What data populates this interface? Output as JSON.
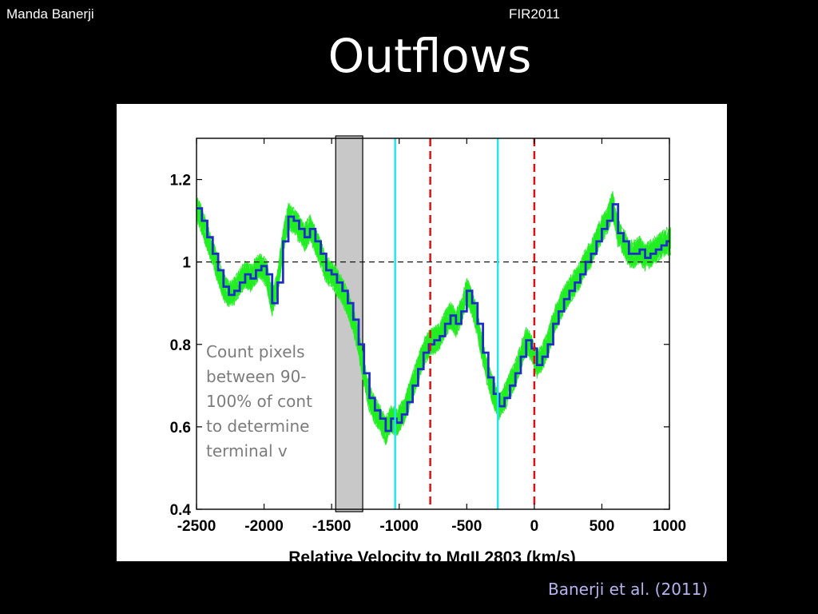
{
  "header": {
    "author": "Manda Banerji",
    "event": "FIR2011"
  },
  "slide": {
    "title": "Outflows",
    "citation": "Banerji et al. (2011)"
  },
  "chart_data": {
    "type": "line",
    "xlabel": "Relative Velocity to MgII 2803 (km/s)",
    "ylabel": "",
    "xlim": [
      -2500,
      1000
    ],
    "ylim": [
      0.4,
      1.3
    ],
    "xticks": [
      -2500,
      -2000,
      -1500,
      -1000,
      -500,
      0,
      500,
      1000
    ],
    "xtick_labels": [
      "-2500",
      "-2000",
      "-1500",
      "-1000",
      "-500",
      "0",
      "500",
      "1000"
    ],
    "yticks": [
      0.4,
      0.6,
      0.8,
      1.0,
      1.2
    ],
    "ytick_labels": [
      "0.4",
      "0.6",
      "0.8",
      "1",
      "1.2"
    ],
    "grid": false,
    "continuum_level": 1.0,
    "shaded_region": [
      -1470,
      -1270
    ],
    "cyan_lines": [
      -1030,
      -270
    ],
    "red_dashed_lines": [
      -770,
      0
    ],
    "annotation": {
      "lines": [
        "Count pixels",
        "between 90-",
        "100% of cont",
        "to determine",
        "terminal v"
      ]
    },
    "series": [
      {
        "style": "step",
        "color": "#1e2cc8",
        "x": [
          -2500,
          -2460,
          -2420,
          -2380,
          -2340,
          -2300,
          -2260,
          -2220,
          -2180,
          -2140,
          -2100,
          -2060,
          -2020,
          -1980,
          -1940,
          -1900,
          -1860,
          -1820,
          -1780,
          -1740,
          -1700,
          -1660,
          -1620,
          -1580,
          -1540,
          -1500,
          -1460,
          -1420,
          -1380,
          -1340,
          -1300,
          -1260,
          -1220,
          -1180,
          -1140,
          -1100,
          -1060,
          -1020,
          -980,
          -940,
          -900,
          -860,
          -820,
          -780,
          -740,
          -700,
          -660,
          -620,
          -580,
          -540,
          -500,
          -460,
          -420,
          -380,
          -340,
          -300,
          -260,
          -220,
          -180,
          -140,
          -100,
          -60,
          -20,
          20,
          60,
          100,
          140,
          180,
          220,
          260,
          300,
          340,
          380,
          420,
          460,
          500,
          540,
          580,
          620,
          660,
          700,
          740,
          780,
          820,
          860,
          900,
          940,
          980
        ],
        "y": [
          1.13,
          1.1,
          1.06,
          1.02,
          0.98,
          0.94,
          0.92,
          0.93,
          0.95,
          0.97,
          0.96,
          0.98,
          0.99,
          0.97,
          0.9,
          0.95,
          1.05,
          1.11,
          1.1,
          1.08,
          1.06,
          1.08,
          1.05,
          1.02,
          0.98,
          0.97,
          0.95,
          0.93,
          0.9,
          0.86,
          0.8,
          0.73,
          0.67,
          0.64,
          0.62,
          0.59,
          0.62,
          0.61,
          0.63,
          0.66,
          0.7,
          0.74,
          0.78,
          0.8,
          0.81,
          0.82,
          0.85,
          0.87,
          0.85,
          0.88,
          0.93,
          0.9,
          0.85,
          0.78,
          0.72,
          0.68,
          0.65,
          0.67,
          0.7,
          0.73,
          0.77,
          0.81,
          0.79,
          0.75,
          0.77,
          0.8,
          0.85,
          0.88,
          0.91,
          0.93,
          0.95,
          0.97,
          1.0,
          1.02,
          1.05,
          1.08,
          1.1,
          1.14,
          1.07,
          1.05,
          1.02,
          1.02,
          1.03,
          1.01,
          1.02,
          1.03,
          1.04,
          1.05
        ]
      }
    ]
  }
}
